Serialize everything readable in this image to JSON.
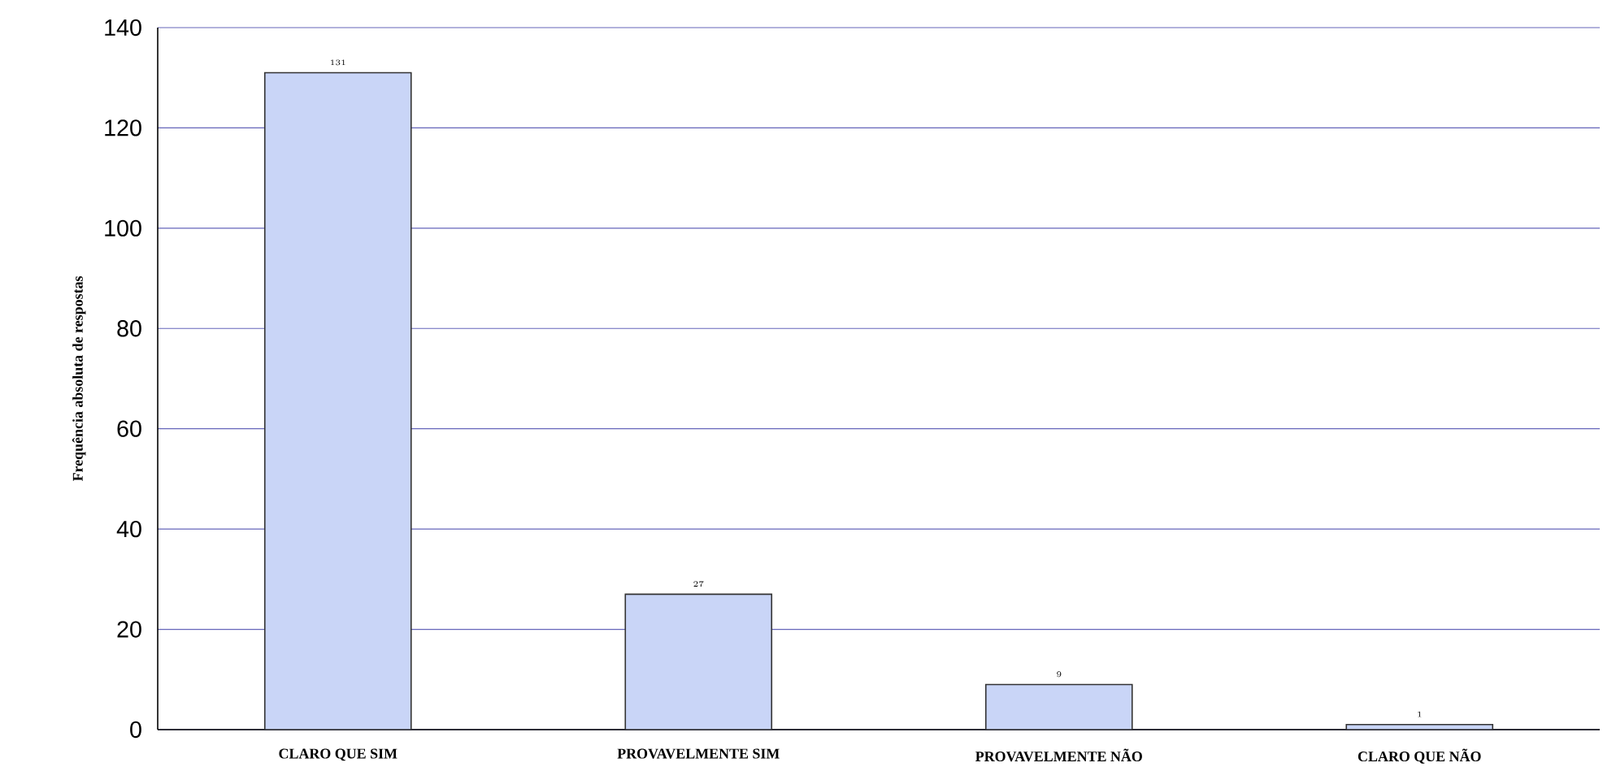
{
  "chart_data": {
    "type": "bar",
    "ylabel": "Frequência absoluta de respostas",
    "categories": [
      "CLARO QUE SIM",
      "PROVAVELMENTE SIM",
      "PROVAVELMENTE NÃO",
      "CLARO QUE NÃO"
    ],
    "values": [
      131,
      27,
      9,
      1
    ],
    "color": "#c9d5f7",
    "ylim": [
      0,
      140
    ],
    "yticks": [
      0,
      20,
      40,
      60,
      80,
      100,
      120,
      140
    ],
    "grid": "y",
    "data_labels": true
  }
}
